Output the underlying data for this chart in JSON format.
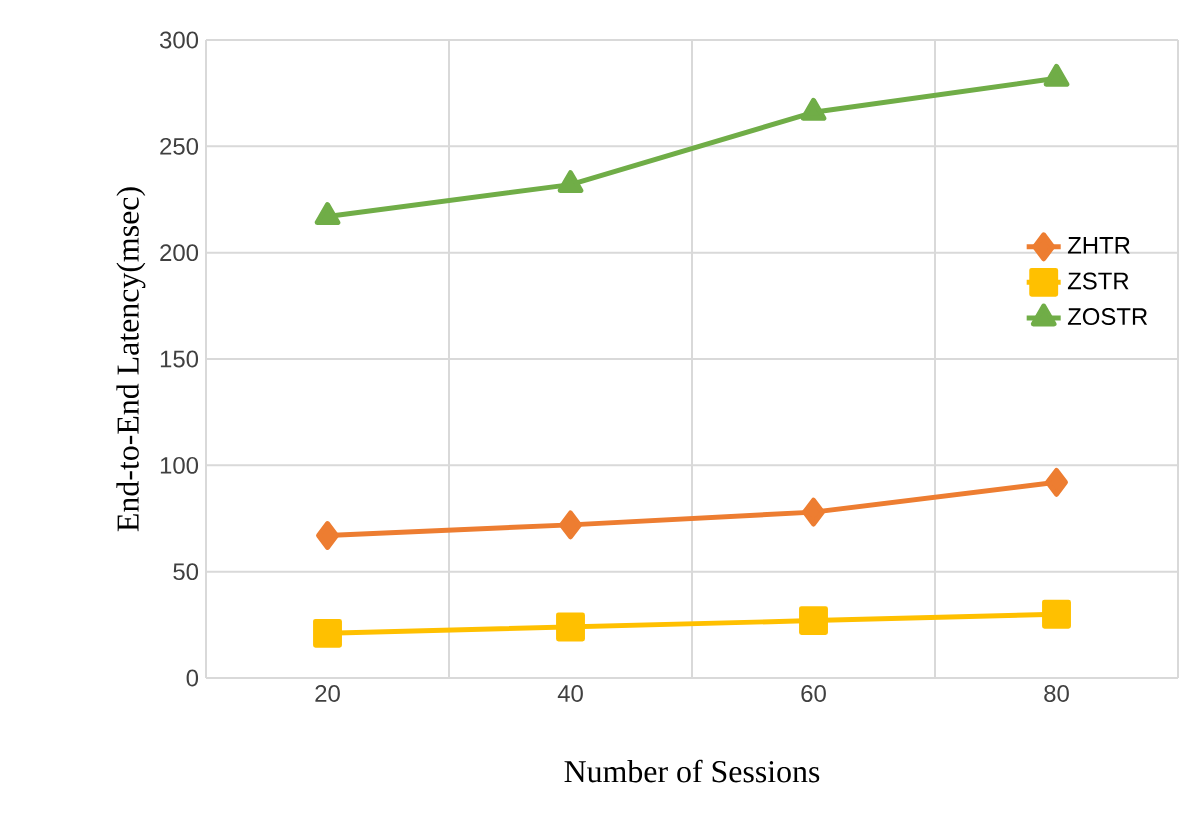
{
  "chart_data": {
    "type": "line",
    "xlabel": "Number of Sessions",
    "ylabel": "End-to-End Latency(msec)",
    "categories": [
      "20",
      "40",
      "60",
      "80"
    ],
    "series": [
      {
        "name": "ZHTR",
        "color": "#ed7d31",
        "marker": "diamond",
        "values": [
          67,
          72,
          78,
          92
        ]
      },
      {
        "name": "ZSTR",
        "color": "#ffc000",
        "marker": "square",
        "values": [
          21,
          24,
          27,
          30
        ]
      },
      {
        "name": "ZOSTR",
        "color": "#70ad47",
        "marker": "triangle",
        "values": [
          217,
          232,
          266,
          282
        ]
      }
    ],
    "ylim": [
      0,
      300
    ],
    "yticks": [
      0,
      50,
      100,
      150,
      200,
      250,
      300
    ],
    "grid": true,
    "legend": "right",
    "line_style": "solid"
  }
}
